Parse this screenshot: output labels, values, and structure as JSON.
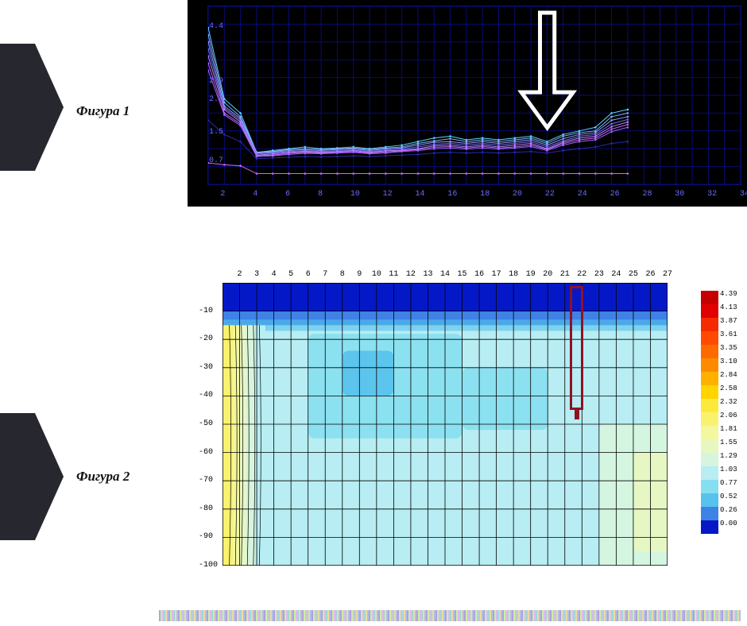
{
  "labels": {
    "fig1": "Фигура 1",
    "fig2": "Фигура 2",
    "label_fontsize": 17
  },
  "fig1": {
    "type": "line",
    "background_color": "#000000",
    "grid_color": "#060c7a",
    "axis_color": "#060c7a",
    "tick_color": "#6b6bff",
    "tick_fontsize": 10,
    "xlim": [
      1,
      34
    ],
    "ylim": [
      0,
      5.0
    ],
    "xtick_step": 2,
    "xticks": [
      2,
      4,
      6,
      8,
      10,
      12,
      14,
      16,
      18,
      20,
      22,
      24,
      26,
      28,
      30,
      32,
      34
    ],
    "yticks": [
      0.7,
      1.5,
      2.4,
      2.9,
      4.4
    ],
    "x": [
      1,
      2,
      3,
      4,
      5,
      6,
      7,
      8,
      9,
      10,
      11,
      12,
      13,
      14,
      15,
      16,
      17,
      18,
      19,
      20,
      21,
      22,
      23,
      24,
      25,
      26,
      27
    ],
    "series": [
      {
        "color": "#5bd4ff",
        "values": [
          4.4,
          2.4,
          2.0,
          0.9,
          0.95,
          1.0,
          1.05,
          1.0,
          1.02,
          1.05,
          1.0,
          1.05,
          1.1,
          1.2,
          1.3,
          1.35,
          1.25,
          1.3,
          1.25,
          1.3,
          1.35,
          1.2,
          1.4,
          1.5,
          1.6,
          2.0,
          2.1
        ]
      },
      {
        "color": "#7ab8ff",
        "values": [
          4.2,
          2.3,
          1.9,
          0.9,
          0.92,
          0.98,
          1.0,
          0.98,
          1.0,
          1.02,
          0.98,
          1.02,
          1.05,
          1.15,
          1.22,
          1.28,
          1.2,
          1.25,
          1.2,
          1.25,
          1.3,
          1.15,
          1.35,
          1.45,
          1.5,
          1.9,
          2.0
        ]
      },
      {
        "color": "#9a9aff",
        "values": [
          4.0,
          2.2,
          1.85,
          0.88,
          0.9,
          0.95,
          0.97,
          0.95,
          0.98,
          1.0,
          0.95,
          1.0,
          1.02,
          1.1,
          1.18,
          1.2,
          1.15,
          1.2,
          1.15,
          1.2,
          1.25,
          1.1,
          1.28,
          1.4,
          1.45,
          1.8,
          1.9
        ]
      },
      {
        "color": "#6f6fff",
        "values": [
          3.8,
          2.15,
          1.8,
          0.85,
          0.88,
          0.92,
          0.94,
          0.92,
          0.95,
          0.97,
          0.92,
          0.97,
          0.99,
          1.05,
          1.12,
          1.15,
          1.1,
          1.15,
          1.1,
          1.15,
          1.2,
          1.05,
          1.22,
          1.35,
          1.4,
          1.7,
          1.82
        ]
      },
      {
        "color": "#b388ff",
        "values": [
          3.6,
          2.1,
          1.75,
          0.82,
          0.85,
          0.9,
          0.92,
          0.9,
          0.92,
          0.95,
          0.9,
          0.94,
          0.96,
          1.0,
          1.08,
          1.1,
          1.05,
          1.1,
          1.05,
          1.1,
          1.15,
          1.0,
          1.18,
          1.3,
          1.35,
          1.62,
          1.75
        ]
      },
      {
        "color": "#cc66ff",
        "values": [
          3.4,
          2.0,
          1.7,
          0.8,
          0.82,
          0.87,
          0.9,
          0.88,
          0.9,
          0.92,
          0.88,
          0.91,
          0.94,
          0.98,
          1.04,
          1.06,
          1.02,
          1.06,
          1.02,
          1.05,
          1.1,
          0.98,
          1.14,
          1.25,
          1.3,
          1.55,
          1.68
        ]
      },
      {
        "color": "#a066ff",
        "values": [
          3.2,
          1.95,
          1.65,
          0.78,
          0.8,
          0.84,
          0.87,
          0.86,
          0.88,
          0.9,
          0.86,
          0.88,
          0.92,
          0.95,
          1.0,
          1.02,
          0.99,
          1.02,
          0.99,
          1.02,
          1.06,
          0.95,
          1.1,
          1.2,
          1.25,
          1.48,
          1.6
        ]
      },
      {
        "color": "#d166ff",
        "values": [
          0.6,
          0.55,
          0.52,
          0.3,
          0.3,
          0.3,
          0.3,
          0.3,
          0.3,
          0.3,
          0.3,
          0.3,
          0.3,
          0.3,
          0.3,
          0.3,
          0.3,
          0.3,
          0.3,
          0.3,
          0.3,
          0.3,
          0.3,
          0.3,
          0.3,
          0.3,
          0.3
        ]
      },
      {
        "color": "#2a2aa8",
        "values": [
          1.8,
          1.4,
          1.2,
          0.72,
          0.74,
          0.76,
          0.78,
          0.77,
          0.78,
          0.8,
          0.78,
          0.8,
          0.82,
          0.84,
          0.88,
          0.9,
          0.88,
          0.9,
          0.88,
          0.9,
          0.92,
          0.88,
          0.95,
          1.0,
          1.05,
          1.15,
          1.2
        ]
      }
    ],
    "arrow_annotation": {
      "stroke": "#ffffff",
      "stroke_width": 5,
      "x": 22,
      "tip_y": 1.6,
      "tail_y": 4.8,
      "head_width_x": 1.6
    }
  },
  "fig2": {
    "type": "contour",
    "background_color": "#ffffff",
    "grid_color": "#000000",
    "tick_fontsize": 10,
    "xlim": [
      1,
      27
    ],
    "ylim": [
      -100,
      0
    ],
    "xticks": [
      2,
      3,
      4,
      5,
      6,
      7,
      8,
      9,
      10,
      11,
      12,
      13,
      14,
      15,
      16,
      17,
      18,
      19,
      20,
      21,
      22,
      23,
      24,
      25,
      26,
      27
    ],
    "yticks": [
      -10,
      -20,
      -30,
      -40,
      -50,
      -60,
      -70,
      -80,
      -90,
      -100
    ],
    "colormap_levels": [
      0.0,
      0.26,
      0.52,
      0.77,
      1.03,
      1.29,
      1.55,
      1.81,
      2.06,
      2.32,
      2.58,
      2.84,
      3.1,
      3.35,
      3.61,
      3.87,
      4.13,
      4.39
    ],
    "colormap_colors": [
      "#0518c8",
      "#3f82e6",
      "#57c2ed",
      "#86dff0",
      "#b7edf3",
      "#d7f5de",
      "#e8f7c0",
      "#f3f79d",
      "#faf26e",
      "#fde93c",
      "#ffd400",
      "#ffb100",
      "#ff8a00",
      "#ff6a00",
      "#ff4a00",
      "#f52a00",
      "#e00000",
      "#c60000"
    ],
    "top_band": {
      "depth_from": 0,
      "depth_to": -10,
      "color": "#0518c8"
    },
    "high_region": {
      "x_from": 1,
      "x_to": 3.5,
      "depth_from": -15,
      "depth_to": -100,
      "bands": [
        {
          "x_to": 1.6,
          "color": "#faf26e"
        },
        {
          "x_to": 2.0,
          "color": "#f3f79d"
        },
        {
          "x_to": 2.4,
          "color": "#e8f7c0"
        },
        {
          "x_to": 2.9,
          "color": "#d7f5de"
        },
        {
          "x_to": 3.5,
          "color": "#b7edf3"
        }
      ]
    },
    "right_patches": [
      {
        "x_from": 23,
        "x_to": 27,
        "depth_from": -50,
        "depth_to": -100,
        "color": "#d7f5de"
      },
      {
        "x_from": 25,
        "x_to": 27,
        "depth_from": -60,
        "depth_to": -95,
        "color": "#e8f7c0"
      }
    ],
    "mid_blue_patches": [
      {
        "x_from": 6,
        "x_to": 15,
        "depth_from": -18,
        "depth_to": -55,
        "color": "#86dff0"
      },
      {
        "x_from": 8,
        "x_to": 11,
        "depth_from": -24,
        "depth_to": -40,
        "color": "#57c2ed"
      },
      {
        "x_from": 15,
        "x_to": 20,
        "depth_from": -30,
        "depth_to": -52,
        "color": "#86dff0"
      }
    ],
    "marker": {
      "color": "#8f1224",
      "border_width": 3,
      "x_from": 21.3,
      "x_to": 22.1,
      "depth_from": -1,
      "depth_to": -45
    }
  }
}
